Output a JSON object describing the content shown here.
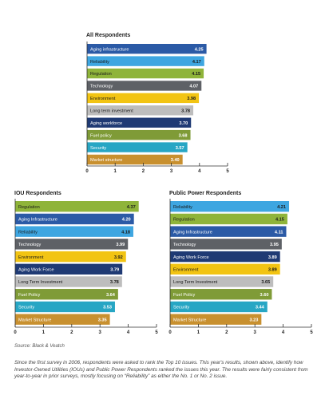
{
  "chart_data": [
    {
      "type": "bar",
      "orientation": "horizontal",
      "title": "All Respondents",
      "categories": [
        "Aging infrastructure",
        "Reliability",
        "Regulation",
        "Technology",
        "Environment",
        "Long term investment",
        "Aging workforce",
        "Fuel policy",
        "Security",
        "Market structure"
      ],
      "values": [
        4.25,
        4.17,
        4.15,
        4.07,
        3.98,
        3.78,
        3.7,
        3.68,
        3.57,
        3.4
      ],
      "value_labels": [
        "4.25",
        "4.17",
        "4.15",
        "4.07",
        "3.98",
        "3.78",
        "3.70",
        "3.68",
        "3.57",
        "3.40"
      ],
      "bar_colors": [
        "#2b5aa6",
        "#3ea6e1",
        "#8fb43a",
        "#5e6166",
        "#f2c413",
        "#bdbdbd",
        "#1f3a74",
        "#7f9b37",
        "#27a6c4",
        "#c8902f"
      ],
      "xlim": [
        0,
        5
      ],
      "xticks": [
        "0",
        "1",
        "2",
        "3",
        "4",
        "5"
      ],
      "grid": false
    },
    {
      "type": "bar",
      "orientation": "horizontal",
      "title": "IOU Respondents",
      "categories": [
        "Regulation",
        "Aging Infrastructure",
        "Reliability",
        "Technology",
        "Environment",
        "Aging Work Force",
        "Long Term Investment",
        "Fuel Policy",
        "Security",
        "Market Structure"
      ],
      "values": [
        4.37,
        4.2,
        4.18,
        3.99,
        3.92,
        3.79,
        3.78,
        3.64,
        3.53,
        3.35
      ],
      "value_labels": [
        "4.37",
        "4.20",
        "4.18",
        "3.99",
        "3.92",
        "3.79",
        "3.78",
        "3.64",
        "3.53",
        "3.35"
      ],
      "bar_colors": [
        "#8fb43a",
        "#2b5aa6",
        "#3ea6e1",
        "#5e6166",
        "#f2c413",
        "#1f3a74",
        "#bdbdbd",
        "#7f9b37",
        "#27a6c4",
        "#c8902f"
      ],
      "xlim": [
        0,
        5
      ],
      "xticks": [
        "0",
        "1",
        "2",
        "3",
        "4",
        "5"
      ],
      "grid": false
    },
    {
      "type": "bar",
      "orientation": "horizontal",
      "title": "Public Power Respondents",
      "categories": [
        "Reliability",
        "Regulation",
        "Aging Infrastructure",
        "Technology",
        "Aging Work Force",
        "Environment",
        "Long Term Investment",
        "Fuel Policy",
        "Security",
        "Market Structure"
      ],
      "values": [
        4.21,
        4.15,
        4.11,
        3.95,
        3.89,
        3.89,
        3.65,
        3.6,
        3.44,
        3.23
      ],
      "value_labels": [
        "4.21",
        "4.15",
        "4.11",
        "3.95",
        "3.89",
        "3.89",
        "3.65",
        "3.60",
        "3.44",
        "3.23"
      ],
      "bar_colors": [
        "#3ea6e1",
        "#8fb43a",
        "#2b5aa6",
        "#5e6166",
        "#1f3a74",
        "#f2c413",
        "#bdbdbd",
        "#7f9b37",
        "#27a6c4",
        "#c8902f"
      ],
      "xlim": [
        0,
        5
      ],
      "xticks": [
        "0",
        "1",
        "2",
        "3",
        "4",
        "5"
      ],
      "grid": false
    }
  ],
  "source": "Source: Black & Veatch",
  "caption": "Since the first survey in 2006, respondents were asked to rank the Top 10 issues. This year's results, shown above, identify how Investor-Owned Utilities (IOUs) and Public Power Respondents ranked the issues this year. The results were fairly consistent from year-to-year in prior surveys, mostly focusing on “Reliability” as either the No. 1 or No. 2 issue."
}
